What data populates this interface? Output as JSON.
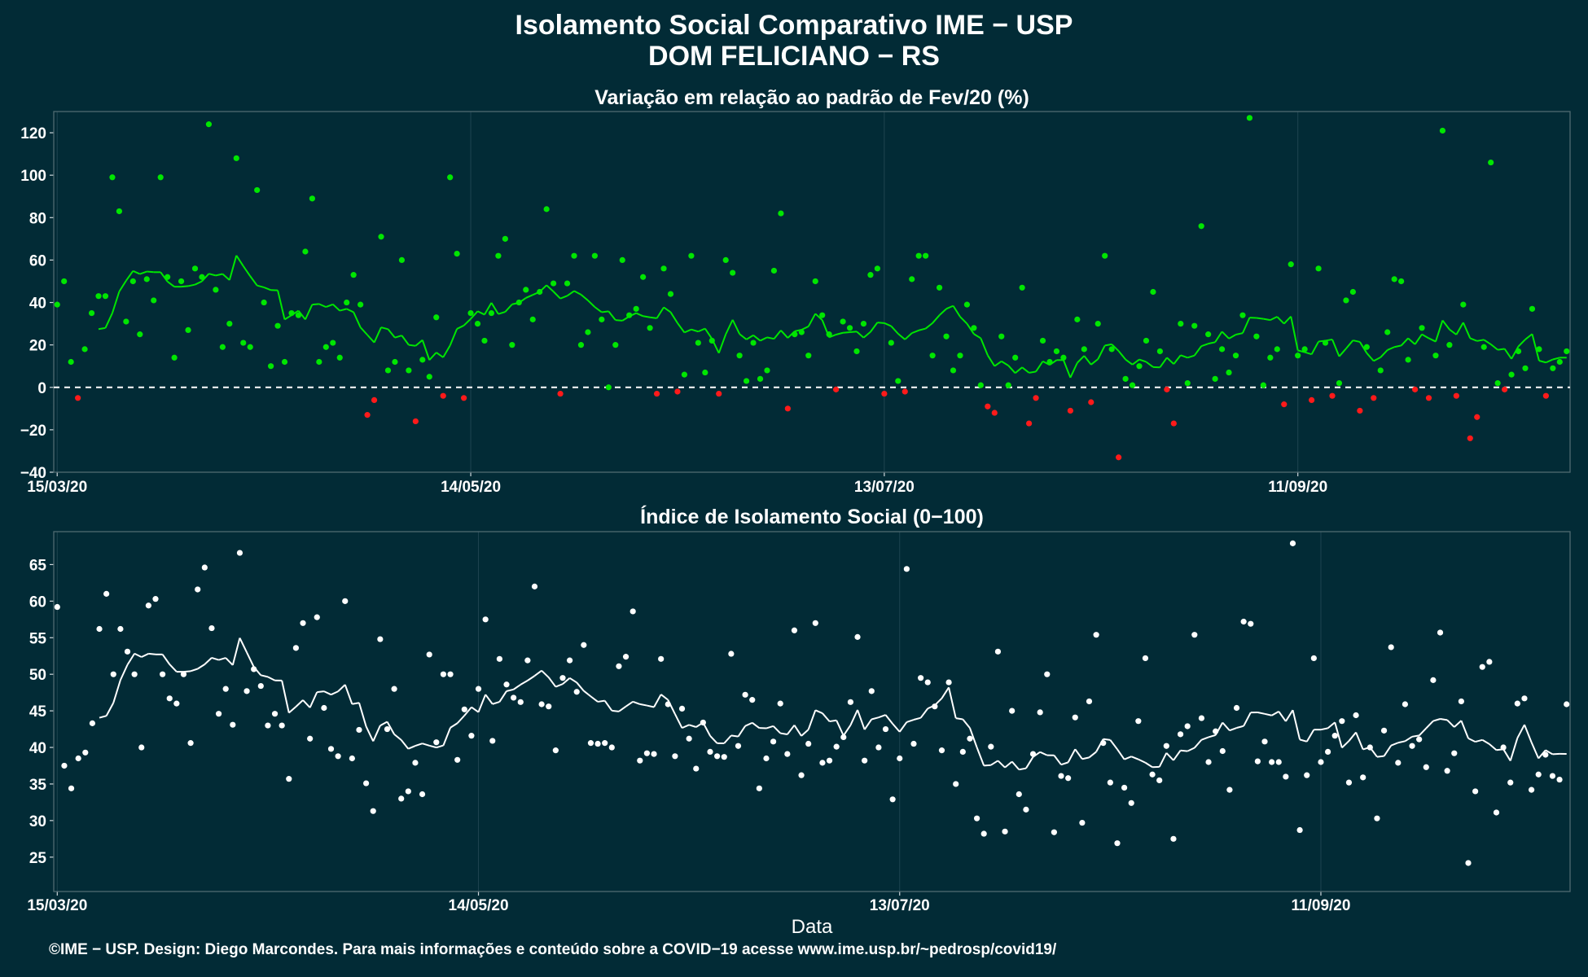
{
  "header": {
    "title": "Isolamento Social Comparativo IME − USP",
    "subtitle": "DOM FELICIANO − RS"
  },
  "footer": {
    "caption": "©IME − USP. Design: Diego Marcondes. Para mais informações e conteúdo sobre a COVID−19 acesse www.ime.usp.br/~pedrosp/covid19/"
  },
  "colors": {
    "background": "#022b36",
    "positive": "#00e600",
    "negative": "#ff1a1a",
    "index": "#ffffff"
  },
  "chart_data": [
    {
      "type": "scatter",
      "title": "Variação em relação ao padrão de Fev/20 (%)",
      "xlabel": "",
      "ylabel": "",
      "x_start": "15/03/20",
      "x_ticks": [
        "15/03/20",
        "14/05/20",
        "13/07/20",
        "11/09/20"
      ],
      "x_tick_days": [
        0,
        60,
        120,
        180
      ],
      "ylim": [
        -40,
        130
      ],
      "y_ticks": [
        -40,
        -20,
        0,
        20,
        40,
        60,
        80,
        100,
        120
      ],
      "reference_line": 0,
      "grid": true,
      "series": [
        {
          "kind": "points",
          "values": [
            39,
            50,
            12,
            -5,
            18,
            35,
            43,
            43,
            99,
            83,
            31,
            50,
            25,
            51,
            41,
            99,
            52,
            14,
            50,
            27,
            56,
            52,
            124,
            46,
            19,
            30,
            108,
            21,
            19,
            93,
            40,
            10,
            29,
            12,
            35,
            34,
            64,
            89,
            12,
            19,
            21,
            14,
            40,
            53,
            39,
            -13,
            -6,
            71,
            8,
            12,
            60,
            8,
            -16,
            13,
            5,
            33,
            -4,
            99,
            63,
            -5,
            35,
            30,
            22,
            35,
            62,
            70,
            20,
            40,
            46,
            32,
            45,
            84,
            49,
            -3,
            49,
            62,
            20,
            26,
            62,
            32,
            0,
            20,
            60,
            34,
            37,
            52,
            28,
            -3,
            56,
            44,
            -2,
            6,
            62,
            21,
            7,
            22,
            -3,
            60,
            54,
            15,
            3,
            21,
            4,
            8,
            55,
            82,
            -10,
            25,
            26,
            15,
            50,
            34,
            25,
            -1,
            31,
            28,
            17,
            30,
            53,
            56,
            -3,
            21,
            3,
            -2,
            51,
            62,
            62,
            15,
            47,
            24,
            8,
            15,
            39,
            28,
            1,
            -9,
            -12,
            24,
            1,
            14,
            47,
            -17,
            -5,
            22,
            12,
            17,
            14,
            -11,
            32,
            18,
            -7,
            30,
            62,
            18,
            -33,
            4,
            1,
            10,
            22,
            45,
            17,
            -1,
            -17,
            30,
            2,
            29,
            76,
            25,
            4,
            18,
            7,
            15,
            34,
            127,
            24,
            1,
            14,
            18,
            -8,
            58,
            15,
            18,
            -6,
            56,
            21,
            -4,
            2,
            41,
            45,
            -11,
            19,
            -5,
            8,
            26,
            51,
            50,
            13,
            -1,
            28,
            -5,
            15,
            121,
            20,
            -4,
            39,
            -24,
            -14,
            19,
            106,
            2,
            -1,
            6,
            17,
            9,
            37,
            18,
            -4,
            9,
            12,
            17
          ],
          "positive_color": "#00e600",
          "negative_color": "#ff1a1a"
        },
        {
          "kind": "moving_average",
          "values": [
            null,
            null,
            null,
            null,
            null,
            null,
            null,
            null,
            null,
            null,
            null,
            null,
            null,
            null,
            null,
            null,
            null,
            null,
            null,
            null,
            null,
            null,
            null,
            null,
            null,
            null,
            null,
            null,
            null,
            null,
            null,
            null,
            null,
            null,
            null,
            null,
            null,
            null,
            null,
            null,
            null,
            null,
            null,
            null,
            null,
            null,
            null,
            null,
            null,
            null,
            null,
            null,
            null,
            null,
            null,
            null,
            null,
            null,
            null,
            null,
            null,
            null,
            null,
            null,
            null,
            null,
            null,
            null,
            null,
            null,
            null,
            null,
            null,
            null,
            null,
            null,
            null,
            null,
            null,
            null,
            null,
            null,
            null,
            null,
            null,
            null,
            null,
            null,
            null,
            null,
            null,
            null,
            null,
            null,
            null,
            null,
            null,
            null,
            null,
            null,
            null,
            null,
            null,
            null,
            null,
            null,
            null,
            null,
            null,
            null,
            null,
            null,
            null,
            null,
            null,
            null,
            null,
            null,
            null,
            null,
            null,
            null,
            null,
            null,
            null,
            null,
            null,
            null,
            null,
            null,
            null,
            null,
            null,
            null,
            null,
            null,
            null,
            null,
            null,
            null,
            null,
            null,
            null,
            null,
            null,
            null,
            null,
            null,
            null,
            null,
            null,
            null,
            null,
            null,
            null,
            null,
            null,
            null,
            null,
            null,
            null,
            null,
            null,
            null,
            null,
            null,
            null,
            null,
            null,
            null,
            null,
            null,
            null,
            null,
            null,
            null,
            null,
            null,
            null,
            null,
            null,
            null,
            null,
            null,
            null,
            null,
            null,
            null,
            null,
            null,
            null,
            null,
            null,
            null,
            null,
            null,
            null,
            null,
            null,
            null,
            null,
            null,
            null,
            null,
            null,
            null,
            null,
            null,
            null,
            null,
            null,
            null,
            null,
            null,
            null,
            null,
            null,
            null,
            null,
            null,
            null,
            null,
            null,
            null,
            null,
            null,
            null
          ],
          "color": "#00e600"
        }
      ]
    },
    {
      "type": "scatter",
      "title": "Índice de Isolamento Social (0−100)",
      "xlabel": "Data",
      "ylabel": "",
      "x_start": "15/03/20",
      "x_ticks": [
        "15/03/20",
        "14/05/20",
        "13/07/20",
        "11/09/20"
      ],
      "x_tick_days": [
        0,
        60,
        120,
        180
      ],
      "ylim": [
        20.3,
        69.5
      ],
      "y_ticks": [
        25,
        30,
        35,
        40,
        45,
        50,
        55,
        60,
        65
      ],
      "grid": true,
      "series": [
        {
          "kind": "points",
          "values": [
            59.2,
            37.5,
            34.4,
            38.5,
            39.3,
            43.3,
            56.2,
            61.0,
            50.0,
            56.2,
            53.1,
            50.0,
            40.0,
            59.4,
            60.3,
            50.0,
            46.7,
            46.0,
            50.0,
            40.6,
            61.6,
            64.6,
            56.3,
            44.6,
            48.0,
            43.1,
            66.6,
            47.7,
            50.7,
            48.4,
            43.0,
            44.6,
            43.0,
            35.7,
            53.6,
            57.0,
            41.2,
            57.8,
            45.4,
            39.8,
            38.8,
            60.0,
            38.5,
            42.4,
            35.1,
            31.3,
            54.8,
            42.5,
            48.0,
            33.0,
            34.0,
            37.9,
            33.6,
            52.7,
            40.7,
            50.0,
            50.0,
            38.3,
            45.2,
            41.6,
            48.0,
            57.5,
            40.9,
            52.1,
            48.6,
            46.8,
            46.2,
            51.9,
            62.0,
            45.9,
            45.6,
            39.6,
            49.5,
            51.9,
            47.6,
            54.0,
            40.6,
            40.5,
            40.6,
            40.0,
            51.1,
            52.4,
            58.6,
            38.2,
            39.2,
            39.1,
            52.1,
            45.9,
            38.8,
            45.3,
            41.2,
            37.1,
            43.4,
            39.4,
            38.8,
            38.7,
            52.8,
            40.2,
            47.2,
            46.5,
            34.4,
            38.5,
            40.8,
            46.0,
            39.1,
            56.0,
            36.2,
            40.5,
            57.0,
            37.9,
            38.2,
            40.1,
            41.4,
            46.2,
            55.1,
            38.2,
            47.7,
            40.0,
            42.5,
            32.9,
            38.5,
            64.4,
            40.5,
            49.5,
            48.9,
            45.6,
            39.6,
            48.9,
            35.0,
            39.4,
            41.2,
            30.3,
            28.2,
            40.1,
            53.1,
            28.5,
            45.0,
            33.6,
            31.5,
            39.1,
            44.8,
            50.0,
            28.4,
            36.1,
            35.8,
            44.1,
            29.7,
            46.3,
            55.4,
            40.6,
            35.2,
            26.9,
            34.5,
            32.4,
            43.6,
            52.2,
            36.3,
            35.5,
            40.2,
            27.5,
            41.8,
            42.9,
            55.4,
            44.0,
            38.0,
            42.2,
            39.5,
            34.2,
            45.4,
            57.2,
            56.9,
            38.1,
            40.8,
            38.0,
            38.0,
            36.0,
            67.9,
            28.7,
            36.2,
            52.2,
            38.0,
            39.4,
            41.6,
            43.6,
            35.2,
            44.4,
            35.9,
            40.0,
            30.3,
            42.3,
            53.7,
            37.9,
            45.9,
            40.2,
            41.1,
            37.3,
            49.2,
            55.7,
            36.8,
            39.2,
            46.3,
            24.2,
            34.0,
            51.0,
            51.7,
            31.1,
            40.0,
            35.2,
            46.0,
            46.7,
            34.2,
            36.3,
            39.0,
            36.1,
            35.6,
            45.9
          ],
          "color": "#ffffff"
        },
        {
          "kind": "moving_average",
          "values": [
            null,
            null,
            null,
            null,
            null,
            null,
            null,
            null,
            null,
            null,
            null,
            null,
            null,
            null,
            null,
            null,
            null,
            null,
            null,
            null,
            null,
            null,
            null,
            null,
            null,
            null,
            null,
            null,
            null,
            null,
            null,
            null,
            null,
            null,
            null,
            null,
            null,
            null,
            null,
            null,
            null,
            null,
            null,
            null,
            null,
            null,
            null,
            null,
            null,
            null,
            null,
            null,
            null,
            null,
            null,
            null,
            null,
            null,
            null,
            null,
            null,
            null,
            null,
            null,
            null,
            null,
            null,
            null,
            null,
            null,
            null,
            null,
            null,
            null,
            null,
            null,
            null,
            null,
            null,
            null,
            null,
            null,
            null,
            null,
            null,
            null,
            null,
            null,
            null,
            null,
            null,
            null,
            null,
            null,
            null,
            null,
            null,
            null,
            null,
            null,
            null,
            null,
            null,
            null,
            null,
            null,
            null,
            null,
            null,
            null,
            null,
            null,
            null,
            null,
            null,
            null,
            null,
            null,
            null,
            null,
            null,
            null,
            null,
            null,
            null,
            null,
            null,
            null,
            null,
            null,
            null,
            null,
            null,
            null,
            null,
            null,
            null,
            null,
            null,
            null,
            null,
            null,
            null,
            null,
            null,
            null,
            null,
            null,
            null,
            null,
            null,
            null,
            null,
            null,
            null,
            null,
            null,
            null,
            null,
            null,
            null,
            null,
            null,
            null,
            null,
            null,
            null,
            null,
            null,
            null,
            null,
            null,
            null,
            null,
            null,
            null,
            null,
            null,
            null,
            null,
            null,
            null,
            null,
            null,
            null,
            null,
            null,
            null,
            null,
            null,
            null,
            null,
            null,
            null,
            null,
            null,
            null,
            null,
            null,
            null,
            null,
            null,
            null,
            null,
            null,
            null,
            null,
            null,
            null,
            null,
            null,
            null,
            null,
            null,
            null,
            null,
            null,
            null,
            null,
            null,
            null,
            null,
            null,
            null,
            null,
            null,
            null,
            null
          ],
          "color": "#ffffff"
        }
      ]
    }
  ]
}
